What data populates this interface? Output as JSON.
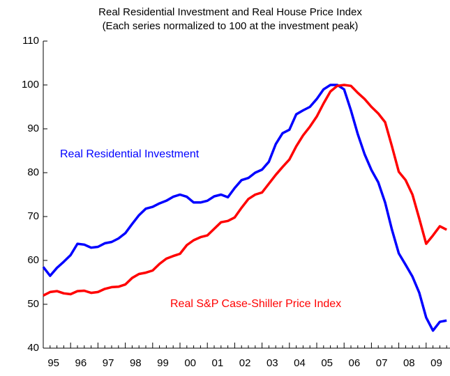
{
  "chart_data": {
    "type": "line",
    "title": "Real Residential Investment and Real House Price Index",
    "subtitle": "(Each series normalized to 100 at  the investment peak)",
    "categories": [
      null,
      "95",
      null,
      null,
      null,
      "96",
      null,
      null,
      null,
      "97",
      null,
      null,
      null,
      "98",
      null,
      null,
      null,
      "99",
      null,
      null,
      null,
      "00",
      null,
      null,
      null,
      "01",
      null,
      null,
      null,
      "02",
      null,
      null,
      null,
      "03",
      null,
      null,
      null,
      "04",
      null,
      null,
      null,
      "05",
      null,
      null,
      null,
      "06",
      null,
      null,
      null,
      "07",
      null,
      null,
      null,
      "08",
      null,
      null,
      null,
      "09",
      null,
      null
    ],
    "series": [
      {
        "name": "Real Residential Investment",
        "color": "#0000ff",
        "values": [
          58.5,
          56.5,
          58.3,
          59.7,
          61.2,
          63.8,
          63.6,
          62.9,
          63.1,
          63.9,
          64.2,
          65.0,
          66.2,
          68.3,
          70.3,
          71.8,
          72.2,
          73.0,
          73.6,
          74.5,
          75.0,
          74.5,
          73.2,
          73.2,
          73.6,
          74.6,
          75.0,
          74.4,
          76.5,
          78.3,
          78.8,
          80.0,
          80.7,
          82.5,
          86.5,
          89.0,
          89.8,
          93.3,
          94.2,
          95.0,
          96.8,
          99.0,
          100.0,
          100.0,
          99.0,
          94.2,
          88.8,
          84.2,
          80.6,
          77.8,
          73.2,
          67.0,
          61.6,
          59.0,
          56.3,
          52.6,
          47.0,
          44.0,
          46.0,
          46.3
        ]
      },
      {
        "name": "Real S&P Case-Shiller Price Index",
        "color": "#ff0000",
        "values": [
          52.0,
          52.8,
          53.0,
          52.5,
          52.3,
          53.0,
          53.1,
          52.6,
          52.8,
          53.5,
          53.9,
          54.0,
          54.5,
          56.0,
          56.9,
          57.2,
          57.7,
          59.2,
          60.4,
          61.0,
          61.5,
          63.5,
          64.6,
          65.3,
          65.7,
          67.2,
          68.7,
          69.0,
          69.8,
          72.0,
          74.0,
          75.0,
          75.5,
          77.5,
          79.5,
          81.3,
          83.0,
          86.0,
          88.5,
          90.5,
          92.8,
          95.8,
          98.5,
          99.8,
          100.0,
          99.8,
          98.2,
          96.8,
          95.0,
          93.5,
          91.5,
          86.0,
          80.2,
          78.3,
          75.0,
          69.5,
          63.8,
          65.7,
          67.8,
          67.0
        ]
      }
    ],
    "ylim": [
      40,
      110
    ],
    "yticks": [
      40,
      50,
      60,
      70,
      80,
      90,
      100,
      110
    ]
  }
}
